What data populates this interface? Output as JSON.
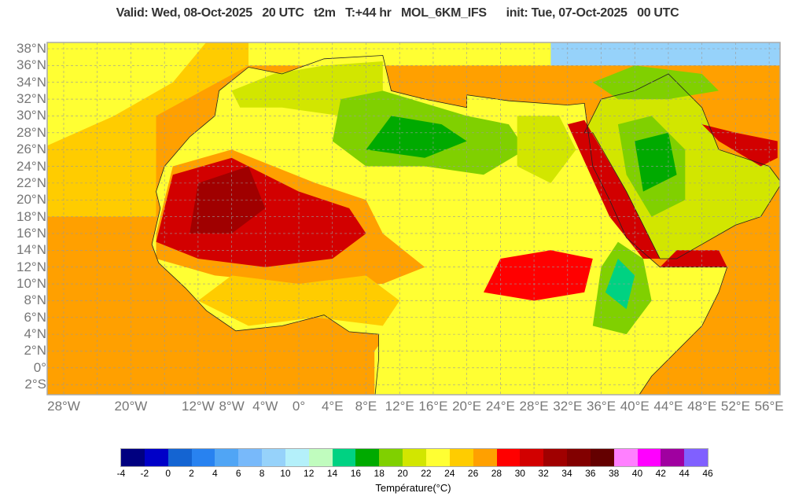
{
  "title": "Valid: Wed, 08-Oct-2025   20 UTC   t2m   T:+44 hr   MOL_6KM_IFS      init: Tue, 07-Oct-2025   00 UTC",
  "map": {
    "projection": "lat-lon",
    "variable": "t2m",
    "lat_labels": [
      "38°N",
      "36°N",
      "34°N",
      "32°N",
      "30°N",
      "28°N",
      "26°N",
      "24°N",
      "22°N",
      "20°N",
      "18°N",
      "16°N",
      "14°N",
      "12°N",
      "10°N",
      "8°N",
      "6°N",
      "4°N",
      "2°N",
      "0°",
      "2°S"
    ],
    "lat_values": [
      38,
      36,
      34,
      32,
      30,
      28,
      26,
      24,
      22,
      20,
      18,
      16,
      14,
      12,
      10,
      8,
      6,
      4,
      2,
      0,
      -2
    ],
    "lon_labels": [
      "28°W",
      "20°W",
      "12°W",
      "8°W",
      "4°W",
      "0°",
      "4°E",
      "8°E",
      "12°E",
      "16°E",
      "20°E",
      "24°E",
      "28°E",
      "32°E",
      "36°E",
      "40°E",
      "44°E",
      "48°E",
      "52°E",
      "56°E"
    ],
    "lon_values": [
      -28,
      -20,
      -12,
      -8,
      -4,
      0,
      4,
      8,
      12,
      16,
      20,
      24,
      28,
      32,
      36,
      40,
      44,
      48,
      52,
      56
    ],
    "grid": true
  },
  "colorbar": {
    "label": "Température(°C)",
    "ticks": [
      "-4",
      "-2",
      "0",
      "2",
      "4",
      "6",
      "8",
      "10",
      "12",
      "14",
      "16",
      "18",
      "20",
      "22",
      "24",
      "26",
      "28",
      "30",
      "32",
      "34",
      "36",
      "38",
      "40",
      "42",
      "44",
      "46"
    ],
    "colors": [
      "#000080",
      "#0000c8",
      "#1464d2",
      "#2882f0",
      "#50a5f5",
      "#78b9fa",
      "#96d2fa",
      "#b4f0fa",
      "#c0fcbe",
      "#00d282",
      "#00aa00",
      "#80d000",
      "#d2e600",
      "#ffff33",
      "#ffcc00",
      "#ffa000",
      "#ff0000",
      "#d20000",
      "#a00000",
      "#820000",
      "#640000",
      "#ff80ff",
      "#ff00ff",
      "#a000a0",
      "#8060ff"
    ]
  }
}
